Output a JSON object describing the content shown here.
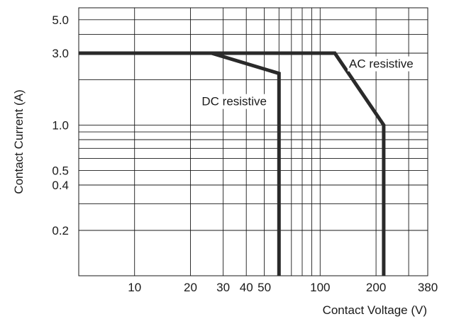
{
  "chart_data": {
    "type": "line",
    "title": "",
    "xlabel": "Contact Voltage (V)",
    "ylabel": "Contact Current (A)",
    "x_scale": "log",
    "y_scale": "log",
    "xlim": [
      5,
      380
    ],
    "ylim": [
      0.1,
      6
    ],
    "grid": true,
    "legend": "none",
    "x_ticks": [
      {
        "value": 10,
        "label": "10"
      },
      {
        "value": 20,
        "label": "20"
      },
      {
        "value": 30,
        "label": "30"
      },
      {
        "value": 40,
        "label": "40"
      },
      {
        "value": 50,
        "label": "50"
      },
      {
        "value": 100,
        "label": "100"
      },
      {
        "value": 200,
        "label": "200"
      },
      {
        "value": 380,
        "label": "380"
      }
    ],
    "y_ticks": [
      {
        "value": 5,
        "label": "5.0"
      },
      {
        "value": 3,
        "label": "3.0"
      },
      {
        "value": 1,
        "label": "1.0"
      },
      {
        "value": 0.5,
        "label": "0.5"
      },
      {
        "value": 0.4,
        "label": "0.4"
      },
      {
        "value": 0.2,
        "label": "0.2"
      }
    ],
    "x_grid": [
      10,
      20,
      30,
      40,
      50,
      60,
      70,
      80,
      90,
      100,
      200,
      300,
      380
    ],
    "y_grid": [
      0.2,
      0.3,
      0.4,
      0.5,
      0.6,
      0.7,
      0.8,
      0.9,
      1,
      2,
      3,
      4,
      5
    ],
    "series": [
      {
        "name": "DC resistive",
        "points": [
          [
            5,
            3
          ],
          [
            26,
            3
          ],
          [
            60,
            2.2
          ],
          [
            60,
            0.1
          ]
        ]
      },
      {
        "name": "AC resistive",
        "points": [
          [
            5,
            3
          ],
          [
            120,
            3
          ],
          [
            220,
            1
          ],
          [
            220,
            0.1
          ]
        ]
      }
    ],
    "annotations": [
      {
        "text": "DC resistive",
        "x": 23,
        "y": 1.35
      },
      {
        "text": "AC resistive",
        "x": 143,
        "y": 2.4
      }
    ]
  }
}
